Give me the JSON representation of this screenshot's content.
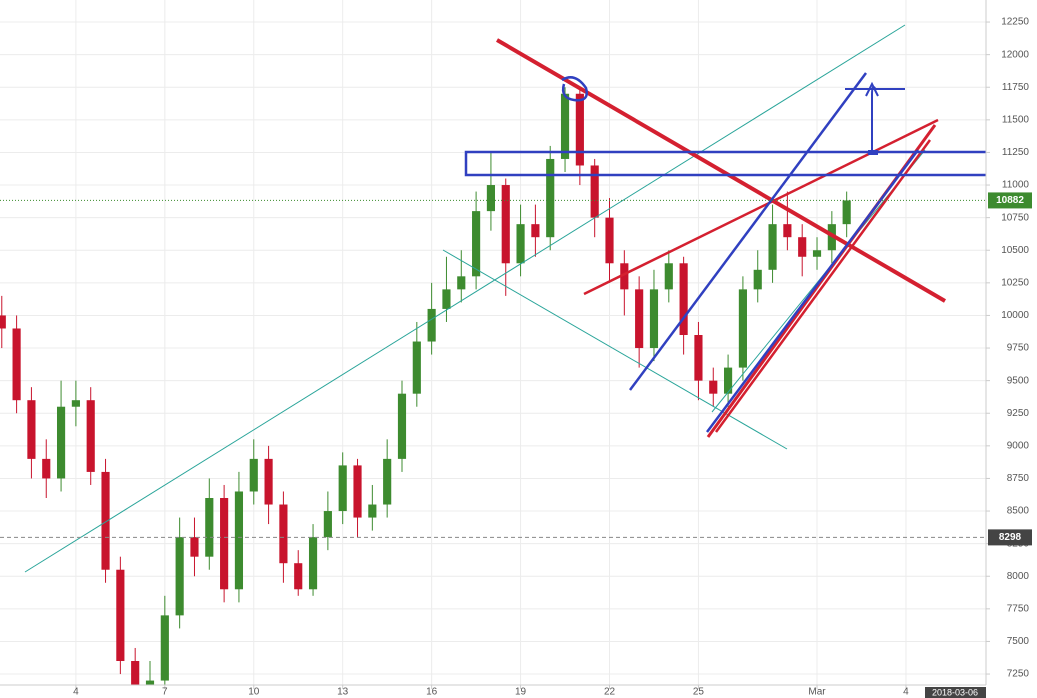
{
  "chart_data": {
    "type": "candlestick",
    "x": [
      1.5,
      2,
      2.5,
      3,
      3.5,
      4,
      4.5,
      5,
      5.5,
      6,
      6.5,
      7,
      7.5,
      8,
      8.5,
      9,
      9.5,
      10,
      10.5,
      11,
      11.5,
      12,
      12.5,
      13,
      13.5,
      14,
      14.5,
      15,
      15.5,
      16,
      16.5,
      17,
      17.5,
      18,
      18.5,
      19,
      19.5,
      20,
      20.5,
      21,
      21.5,
      22,
      22.5,
      23,
      23.5,
      24,
      24.5,
      25,
      25.5,
      26,
      26.5,
      27,
      27.5,
      28,
      28.5,
      29,
      29.5,
      30
    ],
    "open": [
      10000,
      9900,
      9350,
      8900,
      8750,
      9300,
      9350,
      8800,
      8050,
      7350,
      7050,
      7200,
      7700,
      8300,
      8150,
      8600,
      7900,
      8650,
      8900,
      8550,
      8100,
      7900,
      8300,
      8500,
      8850,
      8450,
      8550,
      8900,
      9400,
      9800,
      10050,
      10200,
      10300,
      10800,
      11000,
      10400,
      10700,
      10600,
      11200,
      11700,
      11150,
      10750,
      10400,
      10200,
      9750,
      10200,
      10400,
      9850,
      9500,
      9400,
      9600,
      10200,
      10350,
      10700,
      10600,
      10450,
      10500,
      10700
    ],
    "high": [
      10150,
      10000,
      9450,
      9050,
      9500,
      9500,
      9450,
      8900,
      8150,
      7450,
      7350,
      7850,
      8450,
      8450,
      8750,
      8700,
      8800,
      9050,
      9000,
      8650,
      8200,
      8400,
      8650,
      8950,
      8900,
      8700,
      9050,
      9500,
      9950,
      10250,
      10450,
      10500,
      10950,
      11250,
      11050,
      10850,
      10850,
      11300,
      11750,
      11750,
      11200,
      10900,
      10500,
      10300,
      10350,
      10500,
      10450,
      9950,
      9600,
      9700,
      10300,
      10500,
      10850,
      10950,
      10700,
      10600,
      10800,
      10950
    ],
    "low": [
      9750,
      9250,
      8750,
      8600,
      8650,
      9150,
      8700,
      7950,
      7250,
      6950,
      6950,
      7100,
      7600,
      8000,
      8050,
      7800,
      7800,
      8550,
      8400,
      7950,
      7850,
      7850,
      8200,
      8400,
      8300,
      8350,
      8450,
      8800,
      9300,
      9700,
      9950,
      10100,
      10200,
      10650,
      10150,
      10300,
      10450,
      10500,
      11100,
      11000,
      10600,
      10250,
      10000,
      9600,
      9650,
      10100,
      9700,
      9350,
      9300,
      9300,
      9500,
      10100,
      10250,
      10500,
      10300,
      10350,
      10400,
      10600
    ],
    "close": [
      9900,
      9350,
      8900,
      8750,
      9300,
      9350,
      8800,
      8050,
      7350,
      7050,
      7200,
      7700,
      8300,
      8150,
      8600,
      7900,
      8650,
      8900,
      8550,
      8100,
      7900,
      8300,
      8500,
      8850,
      8450,
      8550,
      8900,
      9400,
      9800,
      10050,
      10200,
      10300,
      10800,
      11000,
      10400,
      10700,
      10600,
      11200,
      11700,
      11150,
      10750,
      10400,
      10200,
      9750,
      10200,
      10400,
      9850,
      9500,
      9400,
      9600,
      10200,
      10350,
      10700,
      10600,
      10450,
      10500,
      10700,
      10882
    ],
    "up_color": "#3d8b2f",
    "down_color": "#c8142d",
    "xlim": [
      1.44,
      34.7
    ],
    "ylim": [
      7166,
      12419
    ],
    "xticks": [
      4,
      7,
      10,
      13,
      16,
      19,
      22,
      25,
      {
        "value": 29,
        "label": "Mar"
      },
      {
        "value": 32,
        "label": "4"
      }
    ],
    "yticks": [
      7250,
      7500,
      7750,
      8000,
      8250,
      8500,
      8750,
      9000,
      9250,
      9500,
      9750,
      10000,
      10250,
      10500,
      10750,
      11000,
      11250,
      11500,
      11750,
      12000,
      12250
    ],
    "grid": true,
    "last_price": 10882,
    "last_price_color": "#3d8b2f",
    "reference_price": 8298,
    "date_label": "2018-03-06"
  }
}
